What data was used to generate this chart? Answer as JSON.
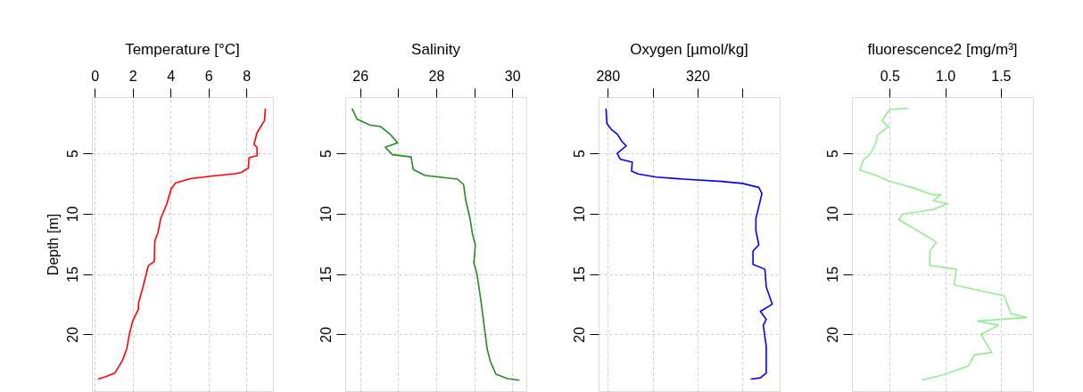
{
  "chart_data": [
    {
      "type": "line",
      "title": "Temperature [°C]",
      "ylabel": "Depth [m]",
      "xlim": [
        -0.15,
        9.4
      ],
      "xticks": [
        0,
        2,
        4,
        6,
        8
      ],
      "ylim": [
        24.7,
        0.35
      ],
      "yticks": [
        5,
        10,
        15,
        20
      ],
      "grid": true,
      "series": [
        {
          "color": "#ff0000",
          "x": [
            9.0,
            8.95,
            8.56,
            8.4,
            8.56,
            8.56,
            8.14,
            8.1,
            7.7,
            7.39,
            6.14,
            5.05,
            4.27,
            4.03,
            3.8,
            3.48,
            3.33,
            3.17,
            3.14,
            2.83,
            2.55,
            2.31,
            2.31,
            2.0,
            1.84,
            1.69,
            1.45,
            1.06,
            0.59,
            0.17
          ],
          "values": [
            1.3,
            2.3,
            3.3,
            4.26,
            4.5,
            5.2,
            5.37,
            6.23,
            6.6,
            6.7,
            6.9,
            7.1,
            7.46,
            7.95,
            9.2,
            10.4,
            11.6,
            12.25,
            13.97,
            14.3,
            16.05,
            17.4,
            17.9,
            18.9,
            19.9,
            21.2,
            22.2,
            23.2,
            23.5,
            23.7
          ]
        }
      ]
    },
    {
      "type": "line",
      "title": "Salinity",
      "xlim": [
        25.61,
        30.37
      ],
      "xticks": [
        26,
        28,
        30,
        {
          "value": 27,
          "label": null
        },
        {
          "value": 29,
          "label": null
        }
      ],
      "ylim": [
        24.7,
        0.35
      ],
      "yticks": [
        5,
        10,
        15,
        20
      ],
      "grid": true,
      "series": [
        {
          "color": "#228b22",
          "x": [
            25.79,
            25.92,
            26.27,
            26.54,
            26.78,
            26.99,
            26.66,
            26.85,
            27.34,
            27.4,
            27.63,
            27.71,
            28.56,
            28.72,
            28.78,
            28.89,
            28.95,
            29.03,
            28.99,
            29.07,
            29.18,
            29.26,
            29.34,
            29.42,
            29.57,
            29.88,
            30.19
          ],
          "values": [
            1.3,
            2.17,
            2.67,
            2.79,
            3.4,
            4.14,
            4.5,
            5.12,
            5.3,
            6.35,
            6.72,
            6.84,
            7.14,
            7.58,
            8.93,
            10.4,
            11.63,
            12.6,
            14.1,
            14.95,
            17.3,
            19.25,
            21.2,
            22.2,
            23.3,
            23.67,
            23.8
          ]
        }
      ]
    },
    {
      "type": "line",
      "title": "Oxygen [µmol/kg]",
      "xlim": [
        275.9,
        356.6
      ],
      "xticks": [
        280,
        320,
        {
          "value": 300,
          "label": null
        },
        {
          "value": 340,
          "label": null
        }
      ],
      "ylim": [
        24.7,
        0.35
      ],
      "yticks": [
        5,
        10,
        15,
        20
      ],
      "grid": true,
      "series": [
        {
          "color": "#0000ff",
          "x": [
            279.2,
            279.6,
            281.6,
            284.2,
            286.2,
            288.2,
            284.2,
            285.6,
            290.9,
            290.6,
            293.5,
            301.5,
            313.5,
            330.7,
            340.0,
            347.3,
            348.7,
            347.3,
            346.0,
            346.0,
            347.3,
            344.7,
            344.7,
            350.0,
            350.6,
            353.3,
            348.0,
            350.6,
            349.3,
            350.6,
            350.6,
            348.0,
            343.7
          ],
          "values": [
            1.3,
            2.54,
            3.03,
            3.4,
            4.0,
            4.39,
            5.0,
            5.5,
            5.74,
            6.47,
            6.72,
            6.97,
            7.14,
            7.33,
            7.5,
            7.83,
            8.32,
            9.42,
            10.4,
            11.4,
            12.6,
            13.1,
            14.2,
            14.6,
            16.06,
            17.5,
            18.1,
            18.76,
            19.25,
            21.0,
            23.2,
            23.6,
            23.7
          ]
        }
      ]
    },
    {
      "type": "line",
      "title": "fluorescence2 [mg/m³]",
      "xlim": [
        0.16,
        1.79
      ],
      "xticks": [
        {
          "value": 0.5,
          "label": "0.5"
        },
        {
          "value": 1.0,
          "label": "1.0"
        },
        {
          "value": 1.5,
          "label": "1.5"
        }
      ],
      "ylim": [
        24.7,
        0.35
      ],
      "yticks": [
        5,
        10,
        15,
        20
      ],
      "grid": true,
      "series": [
        {
          "color": "#90ee90",
          "x": [
            0.67,
            0.5,
            0.43,
            0.49,
            0.39,
            0.37,
            0.33,
            0.26,
            0.23,
            0.38,
            0.5,
            0.7,
            0.89,
            0.96,
            0.89,
            1.02,
            0.89,
            0.62,
            0.58,
            0.75,
            0.92,
            0.86,
            0.86,
            1.1,
            1.08,
            1.32,
            1.53,
            1.59,
            1.73,
            1.29,
            1.48,
            1.32,
            1.42,
            1.26,
            1.21,
            1.0,
            0.79
          ],
          "values": [
            1.27,
            1.36,
            2.3,
            2.79,
            3.5,
            4.26,
            5.0,
            5.6,
            6.4,
            6.84,
            7.33,
            7.83,
            8.44,
            8.44,
            8.93,
            9.18,
            9.67,
            10.04,
            10.5,
            11.4,
            12.37,
            13.1,
            14.3,
            14.6,
            15.9,
            16.4,
            16.8,
            18.27,
            18.6,
            18.9,
            19.25,
            20.0,
            21.5,
            21.7,
            22.6,
            23.3,
            23.8
          ]
        }
      ]
    }
  ]
}
